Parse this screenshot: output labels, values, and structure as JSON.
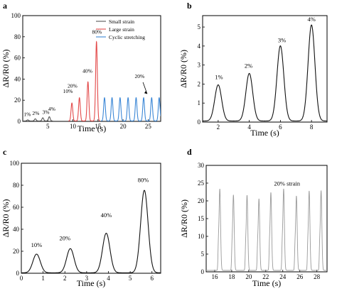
{
  "colors": {
    "small": "#555555",
    "large": "#e34a4a",
    "cyclic": "#3b87d6",
    "panel": "#111111",
    "paneld": "#9a9a9a"
  },
  "chart_data": [
    {
      "panel": "a",
      "type": "line",
      "xlabel": "Time (s)",
      "ylabel": "ΔR/R0 (%)",
      "xlim": [
        0,
        27.5
      ],
      "ylim": [
        0,
        100
      ],
      "xticks": [
        "5",
        "10",
        "15",
        "20",
        "25"
      ],
      "yticks": [
        "0",
        "20",
        "40",
        "60",
        "80",
        "100"
      ],
      "legend": {
        "position": "top-right",
        "entries": [
          "Small strain",
          "Large strain",
          "Cyclic stretching"
        ]
      },
      "series": [
        {
          "name": "Small strain",
          "peak_times": [
            1,
            2.5,
            4,
            5.3
          ],
          "peak_values": [
            1,
            2,
            3,
            4
          ]
        },
        {
          "name": "Large strain",
          "peak_times": [
            9.8,
            11.3,
            13,
            14.7
          ],
          "peak_values": [
            17,
            22,
            37,
            75
          ]
        },
        {
          "name": "Cyclic stretching",
          "peak_times": [
            16.3,
            17.8,
            19.4,
            21,
            22.6,
            24.1,
            25.7,
            27.2
          ],
          "peak_values": [
            22,
            22,
            22,
            22,
            22,
            22,
            22,
            22
          ]
        }
      ],
      "annotations": [
        {
          "text": "1%",
          "x": 0.9,
          "y": 5
        },
        {
          "text": "2%",
          "x": 2.6,
          "y": 6
        },
        {
          "text": "3%",
          "x": 4.6,
          "y": 7
        },
        {
          "text": "4%",
          "x": 5.8,
          "y": 10
        },
        {
          "text": "10%",
          "x": 9.0,
          "y": 27
        },
        {
          "text": "20%",
          "x": 9.9,
          "y": 32
        },
        {
          "text": "40%",
          "x": 12.9,
          "y": 46
        },
        {
          "text": "80%",
          "x": 14.8,
          "y": 83
        },
        {
          "text": "20%",
          "x": 23.3,
          "y": 41
        }
      ]
    },
    {
      "panel": "b",
      "type": "line",
      "xlabel": "Time (s)",
      "ylabel": "ΔR/R0 (%)",
      "xlim": [
        1,
        9
      ],
      "ylim": [
        0,
        5.6
      ],
      "xticks": [
        "2",
        "4",
        "6",
        "8"
      ],
      "yticks": [
        "0",
        "1",
        "2",
        "3",
        "4",
        "5"
      ],
      "series": [
        {
          "peak_times": [
            2,
            4,
            6,
            8
          ],
          "peak_values": [
            1.9,
            2.5,
            3.95,
            5.05
          ]
        }
      ],
      "annotations": [
        {
          "text": "1%",
          "x": 2.05,
          "y": 2.25
        },
        {
          "text": "2%",
          "x": 3.95,
          "y": 2.85
        },
        {
          "text": "3%",
          "x": 6.1,
          "y": 4.2
        },
        {
          "text": "4%",
          "x": 8.0,
          "y": 5.3
        }
      ]
    },
    {
      "panel": "c",
      "type": "line",
      "xlabel": "Time (s)",
      "ylabel": "ΔR/R0 (%)",
      "xlim": [
        0,
        6.4
      ],
      "ylim": [
        0,
        100
      ],
      "xticks": [
        "0",
        "1",
        "2",
        "3",
        "4",
        "5",
        "6"
      ],
      "yticks": [
        "0",
        "20",
        "40",
        "60",
        "80",
        "100"
      ],
      "series": [
        {
          "peak_times": [
            0.7,
            2.25,
            3.9,
            5.65
          ],
          "peak_values": [
            17,
            22,
            36,
            75
          ]
        }
      ],
      "annotations": [
        {
          "text": "10%",
          "x": 0.7,
          "y": 24
        },
        {
          "text": "20%",
          "x": 2.0,
          "y": 30
        },
        {
          "text": "40%",
          "x": 3.9,
          "y": 51
        },
        {
          "text": "80%",
          "x": 5.6,
          "y": 83
        }
      ]
    },
    {
      "panel": "d",
      "type": "line",
      "xlabel": "Time (s)",
      "ylabel": "ΔR/R0 (%)",
      "xlim": [
        15,
        29.2
      ],
      "ylim": [
        0,
        30
      ],
      "xticks": [
        "16",
        "18",
        "20",
        "22",
        "24",
        "26",
        "28"
      ],
      "yticks": [
        "0",
        "5",
        "10",
        "15",
        "20",
        "25",
        "30"
      ],
      "series": [
        {
          "peak_times": [
            16.6,
            18.2,
            19.8,
            21.2,
            22.6,
            24.1,
            25.6,
            27.1,
            28.5
          ],
          "peak_values": [
            23,
            21.3,
            21.2,
            20.2,
            22,
            23,
            21,
            22.4,
            22.4
          ]
        }
      ],
      "annotations": [
        {
          "text": "20% strain",
          "x": 24.5,
          "y": 24.3
        }
      ]
    }
  ]
}
